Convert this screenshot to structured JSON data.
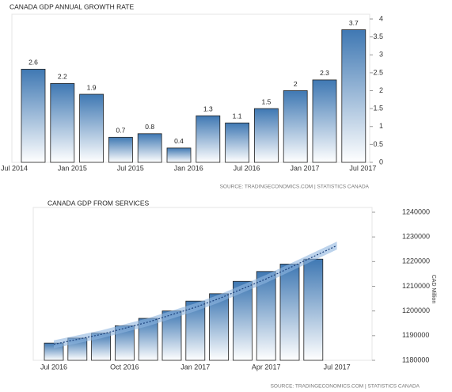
{
  "chart_data": [
    {
      "type": "bar",
      "title": "CANADA GDP ANNUAL GROWTH RATE",
      "xticks": [
        "Jul 2014",
        "Jan 2015",
        "Jul 2015",
        "Jan 2016",
        "Jul 2016",
        "Jan 2017",
        "Jul 2017"
      ],
      "values": [
        2.6,
        2.2,
        1.9,
        0.7,
        0.8,
        0.4,
        1.3,
        1.1,
        1.5,
        2,
        2.3,
        3.7
      ],
      "ylim": [
        0,
        4
      ],
      "yticks": [
        0,
        0.5,
        1,
        1.5,
        2,
        2.5,
        3,
        3.5,
        4
      ],
      "color": "#3f78b3",
      "source": "SOURCE: TRADINGECONOMICS.COM | STATISTICS CANADA"
    },
    {
      "type": "bar",
      "title": "CANADA GDP FROM SERVICES",
      "categories": [
        "Jul 2016",
        null,
        null,
        "Oct 2016",
        null,
        null,
        "Jan 2017",
        null,
        null,
        "Apr 2017",
        null,
        null,
        "Jul 2017"
      ],
      "values": [
        1187000,
        1189000,
        1191000,
        1194000,
        1197000,
        1200000,
        1204000,
        1207000,
        1212000,
        1216000,
        1219000,
        1221000,
        null
      ],
      "trend_values": [
        1186500,
        1188500,
        1190500,
        1193000,
        1195500,
        1198500,
        1201500,
        1205000,
        1209000,
        1213000,
        1217500,
        1222000,
        1226500
      ],
      "ylim": [
        1180000,
        1240000
      ],
      "yticks": [
        1180000,
        1190000,
        1200000,
        1210000,
        1220000,
        1230000,
        1240000
      ],
      "ylabel": "CAD Million",
      "color": "#3f78b3",
      "source": "SOURCE: TRADINGECONOMICS.COM | STATISTICS CANADA"
    }
  ]
}
